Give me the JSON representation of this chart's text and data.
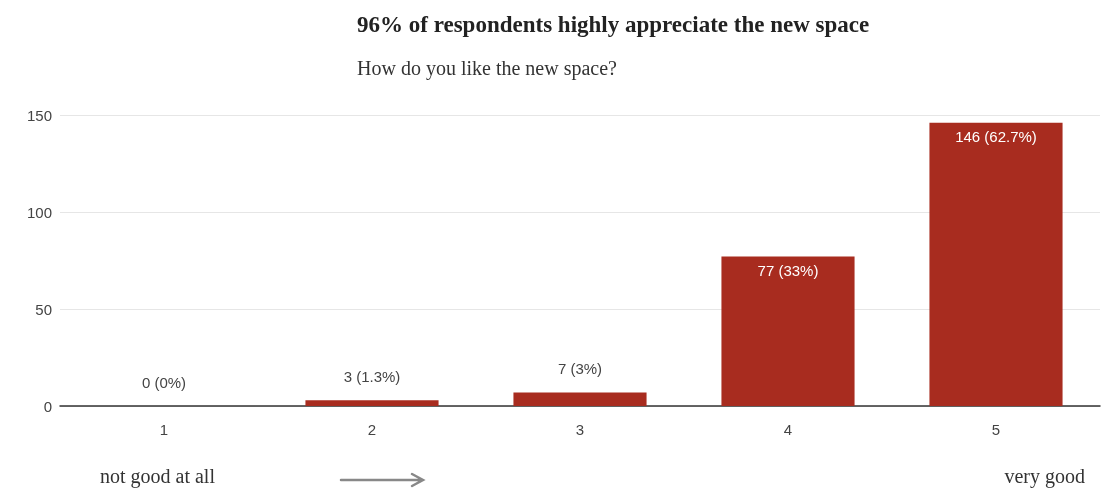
{
  "chart_data": {
    "type": "bar",
    "title": "96% of respondents highly appreciate the new space",
    "subtitle": "How do you like the new space?",
    "categories": [
      "1",
      "2",
      "3",
      "4",
      "5"
    ],
    "values": [
      0,
      3,
      7,
      77,
      146
    ],
    "value_labels": [
      "0 (0%)",
      "3 (1.3%)",
      "7 (3%)",
      "77 (33%)",
      "146 (62.7%)"
    ],
    "color": "#a82c1f",
    "ylim": [
      0,
      150
    ],
    "yticks": [
      0,
      50,
      100,
      150
    ],
    "grid": "y",
    "annotations": [
      "not good at all",
      "very good"
    ]
  }
}
